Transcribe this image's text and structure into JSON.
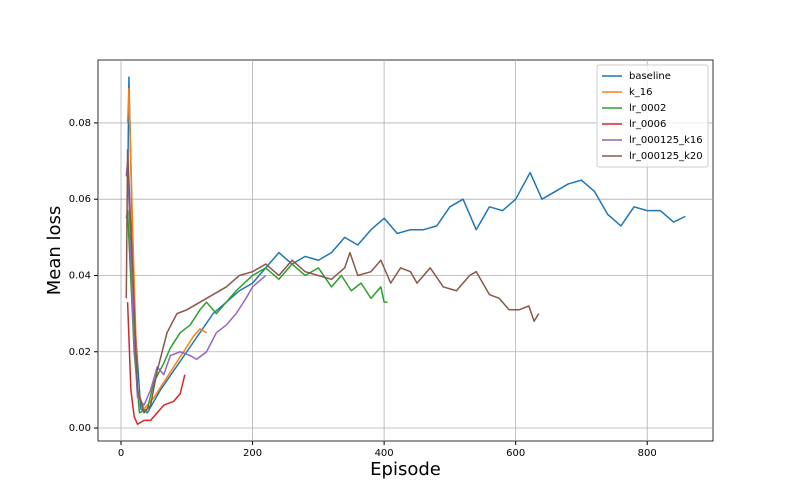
{
  "chart_data": {
    "type": "line",
    "xlabel": "Episode",
    "ylabel": "Mean loss",
    "xlim": [
      -35,
      900
    ],
    "ylim": [
      -0.0034,
      0.0965
    ],
    "xticks": [
      0,
      200,
      400,
      600,
      800
    ],
    "yticks": [
      {
        "value": 0,
        "label": "0.00"
      },
      0.02,
      0.04,
      0.06,
      0.08
    ],
    "grid": true,
    "legend": "upper right",
    "series": [
      {
        "name": "baseline",
        "color": "#1f77b4",
        "x": [
          10,
          12,
          20,
          30,
          40,
          60,
          80,
          100,
          120,
          140,
          160,
          180,
          200,
          220,
          240,
          260,
          280,
          300,
          320,
          340,
          360,
          380,
          400,
          420,
          440,
          460,
          480,
          500,
          520,
          540,
          560,
          580,
          600,
          622,
          640,
          660,
          680,
          700,
          720,
          740,
          760,
          780,
          800,
          820,
          840,
          858
        ],
        "values": [
          0.06,
          0.092,
          0.03,
          0.005,
          0.004,
          0.01,
          0.015,
          0.02,
          0.025,
          0.03,
          0.033,
          0.036,
          0.038,
          0.042,
          0.046,
          0.043,
          0.045,
          0.044,
          0.046,
          0.05,
          0.048,
          0.052,
          0.055,
          0.051,
          0.052,
          0.052,
          0.053,
          0.058,
          0.06,
          0.052,
          0.058,
          0.057,
          0.06,
          0.067,
          0.06,
          0.062,
          0.064,
          0.065,
          0.062,
          0.056,
          0.053,
          0.058,
          0.057,
          0.057,
          0.054,
          0.0555
        ]
      },
      {
        "name": "k_16",
        "color": "#ff7f0e",
        "x": [
          10,
          12,
          18,
          25,
          35,
          50,
          65,
          80,
          95,
          110,
          120,
          130
        ],
        "values": [
          0.08,
          0.089,
          0.05,
          0.01,
          0.005,
          0.008,
          0.012,
          0.016,
          0.02,
          0.024,
          0.026,
          0.025
        ]
      },
      {
        "name": "lr_0002",
        "color": "#2ca02c",
        "x": [
          8,
          10,
          20,
          28,
          40,
          50,
          65,
          75,
          90,
          105,
          120,
          130,
          145,
          160,
          175,
          200,
          220,
          240,
          260,
          280,
          300,
          320,
          335,
          350,
          365,
          380,
          395,
          400,
          405
        ],
        "values": [
          0.055,
          0.057,
          0.02,
          0.004,
          0.005,
          0.012,
          0.017,
          0.021,
          0.025,
          0.027,
          0.031,
          0.033,
          0.03,
          0.033,
          0.036,
          0.04,
          0.042,
          0.039,
          0.043,
          0.04,
          0.042,
          0.037,
          0.04,
          0.036,
          0.038,
          0.034,
          0.037,
          0.033,
          0.033
        ]
      },
      {
        "name": "lr_0006",
        "color": "#d62728",
        "x": [
          10,
          15,
          20,
          25,
          35,
          45,
          55,
          65,
          80,
          90,
          97
        ],
        "values": [
          0.033,
          0.01,
          0.003,
          0.001,
          0.002,
          0.002,
          0.004,
          0.006,
          0.007,
          0.009,
          0.014
        ]
      },
      {
        "name": "lr_000125_k16",
        "color": "#9467bd",
        "x": [
          8,
          10,
          18,
          25,
          35,
          45,
          55,
          65,
          75,
          90,
          105,
          115,
          130,
          145,
          160,
          175,
          190,
          200,
          220
        ],
        "values": [
          0.066,
          0.07,
          0.03,
          0.008,
          0.006,
          0.01,
          0.016,
          0.014,
          0.019,
          0.02,
          0.019,
          0.018,
          0.02,
          0.025,
          0.027,
          0.03,
          0.034,
          0.037,
          0.04
        ]
      },
      {
        "name": "lr_000125_k20",
        "color": "#8c564b",
        "x": [
          8,
          10,
          18,
          25,
          35,
          45,
          55,
          70,
          85,
          100,
          120,
          140,
          160,
          180,
          200,
          220,
          240,
          260,
          280,
          300,
          320,
          340,
          348,
          360,
          380,
          395,
          410,
          425,
          440,
          450,
          470,
          490,
          510,
          530,
          540,
          560,
          575,
          590,
          605,
          620,
          628,
          635
        ],
        "values": [
          0.034,
          0.073,
          0.04,
          0.01,
          0.004,
          0.006,
          0.015,
          0.025,
          0.03,
          0.031,
          0.033,
          0.035,
          0.037,
          0.04,
          0.041,
          0.043,
          0.04,
          0.044,
          0.041,
          0.04,
          0.039,
          0.042,
          0.046,
          0.04,
          0.041,
          0.044,
          0.038,
          0.042,
          0.041,
          0.038,
          0.042,
          0.037,
          0.036,
          0.04,
          0.041,
          0.035,
          0.034,
          0.031,
          0.031,
          0.032,
          0.028,
          0.03
        ]
      }
    ]
  }
}
